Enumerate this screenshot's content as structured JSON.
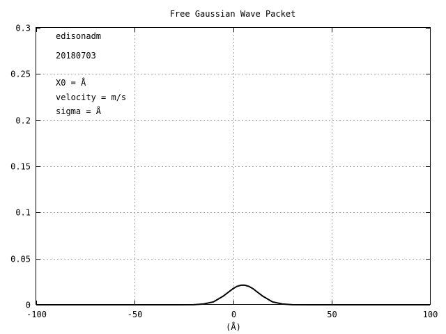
{
  "chart_data": {
    "type": "line",
    "title": "Free Gaussian Wave Packet",
    "xlabel": "(Å)",
    "ylabel": "",
    "xlim": [
      -100,
      100
    ],
    "ylim": [
      0,
      0.3
    ],
    "grid": true,
    "x_ticks": [
      "-100",
      "-50",
      "0",
      "50",
      "100"
    ],
    "y_ticks": [
      "0",
      "0.05",
      "0.1",
      "0.15",
      "0.2",
      "0.25",
      "0.3"
    ],
    "annotations": [
      "edisonadm",
      "20180703",
      "X0 =  Å",
      "velocity =  m/s",
      "sigma =  Å"
    ],
    "series": [
      {
        "color": "#000000",
        "x": [
          -100,
          -80,
          -60,
          -40,
          -30,
          -20,
          -15,
          -10,
          -5,
          0,
          2,
          4,
          5,
          6,
          8,
          10,
          15,
          20,
          25,
          30,
          40,
          60,
          80,
          100
        ],
        "y": [
          0,
          0,
          0,
          0,
          0,
          0.0001,
          0.0008,
          0.0032,
          0.0094,
          0.0176,
          0.02,
          0.0212,
          0.0213,
          0.0212,
          0.02,
          0.0176,
          0.0094,
          0.0032,
          0.0008,
          0.0001,
          0,
          0,
          0,
          0
        ]
      }
    ]
  }
}
